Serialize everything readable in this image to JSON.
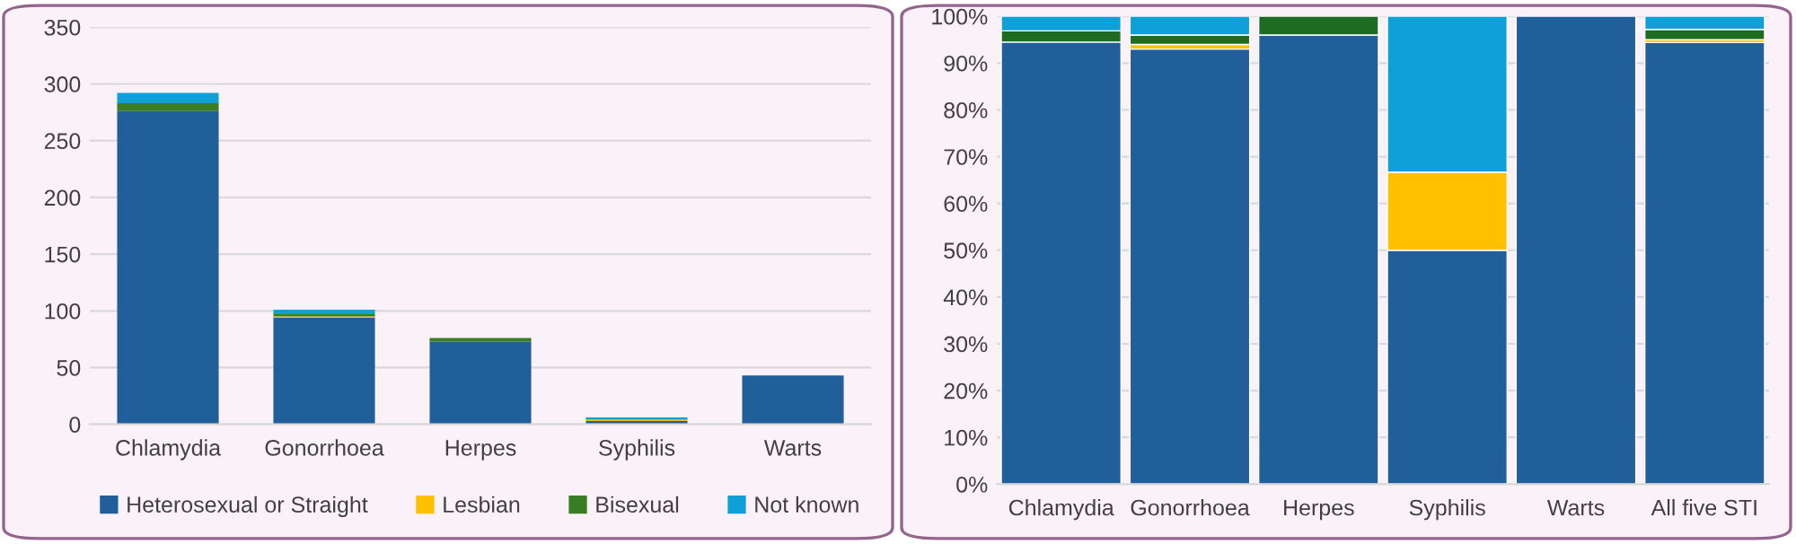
{
  "chart_data": [
    {
      "type": "bar",
      "stacked": true,
      "categories": [
        "Chlamydia",
        "Gonorrhoea",
        "Herpes",
        "Syphilis",
        "Warts"
      ],
      "ylim": [
        0,
        350
      ],
      "yticks": [
        0,
        50,
        100,
        150,
        200,
        250,
        300,
        350
      ],
      "grid": "y",
      "legend": "bottom",
      "series": [
        {
          "name": "Heterosexual or Straight",
          "color": "#215f9a",
          "values": [
            276,
            94,
            73,
            3,
            43
          ]
        },
        {
          "name": "Lesbian",
          "color": "#ffc000",
          "values": [
            0,
            1,
            0,
            1,
            0
          ]
        },
        {
          "name": "Bisexual",
          "color": "#3a7d22",
          "values": [
            7,
            2,
            3,
            0,
            0
          ]
        },
        {
          "name": "Not known",
          "color": "#0fa0d8",
          "values": [
            9,
            4,
            0,
            2,
            0
          ]
        }
      ]
    },
    {
      "type": "bar",
      "stacked": true,
      "categories": [
        "Chlamydia",
        "Gonorrhoea",
        "Herpes",
        "Syphilis",
        "Warts",
        "All five STI"
      ],
      "ylim": [
        0,
        100
      ],
      "yticks": [
        {
          "value": 0,
          "label": "0%"
        },
        {
          "value": 10,
          "label": "10%"
        },
        {
          "value": 20,
          "label": "20%"
        },
        {
          "value": 30,
          "label": "30%"
        },
        {
          "value": 40,
          "label": "40%"
        },
        {
          "value": 50,
          "label": "50%"
        },
        {
          "value": 60,
          "label": "60%"
        },
        {
          "value": 70,
          "label": "70%"
        },
        {
          "value": 80,
          "label": "80%"
        },
        {
          "value": 90,
          "label": "90%"
        },
        {
          "value": 100,
          "label": "100%"
        }
      ],
      "grid": "y",
      "series": [
        {
          "color": "#215f9a",
          "values": [
            94.5,
            93,
            96,
            50,
            100,
            94.4
          ]
        },
        {
          "color": "#ffc000",
          "values": [
            0,
            1,
            0,
            16.7,
            0,
            0.6
          ]
        },
        {
          "color": "#1e6b22",
          "values": [
            2.4,
            2,
            4,
            0,
            0,
            2.2
          ]
        },
        {
          "color": "#0fa0d8",
          "values": [
            3.1,
            4,
            0,
            33.3,
            0,
            2.8
          ]
        }
      ]
    }
  ]
}
